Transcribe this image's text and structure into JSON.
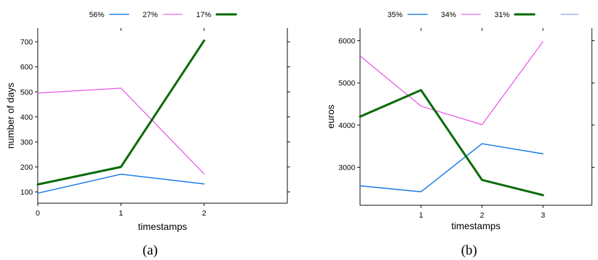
{
  "chart_data": [
    {
      "type": "line",
      "caption": "(a)",
      "xlabel": "timestamps",
      "ylabel": "number of days",
      "xlim": [
        0,
        3
      ],
      "ylim": [
        55,
        755
      ],
      "xticks": [
        0,
        1,
        2
      ],
      "yticks": [
        100,
        200,
        300,
        400,
        500,
        600,
        700
      ],
      "legend_position": "top",
      "grid": false,
      "series": [
        {
          "name": "56%",
          "color": "#1e7fe6",
          "width": 1.6,
          "x": [
            0,
            1,
            2
          ],
          "values": [
            95,
            171,
            132
          ]
        },
        {
          "name": "27%",
          "color": "#e638e6",
          "width": 1.1,
          "x": [
            0,
            1,
            2
          ],
          "values": [
            495,
            515,
            172
          ]
        },
        {
          "name": "17%",
          "color": "#0b6b0b",
          "width": 3.2,
          "x": [
            0,
            1,
            2
          ],
          "values": [
            130,
            200,
            705
          ]
        }
      ]
    },
    {
      "type": "line",
      "caption": "(b)",
      "xlabel": "timestamps",
      "ylabel": "euros",
      "xlim": [
        0,
        3.8
      ],
      "ylim": [
        2100,
        6300
      ],
      "xticks": [
        1,
        2,
        3
      ],
      "yticks": [
        3000,
        4000,
        5000,
        6000
      ],
      "legend_position": "top",
      "grid": false,
      "series": [
        {
          "name": "35%",
          "color": "#1e7fe6",
          "width": 1.6,
          "x": [
            0,
            1,
            2,
            3
          ],
          "values": [
            2560,
            2420,
            3560,
            3320
          ]
        },
        {
          "name": "34%",
          "color": "#e638e6",
          "width": 1.1,
          "x": [
            0,
            1,
            2,
            3
          ],
          "values": [
            5640,
            4450,
            4010,
            5980
          ]
        },
        {
          "name": "31%",
          "color": "#0b6b0b",
          "width": 3.2,
          "x": [
            0,
            1,
            2,
            3
          ],
          "values": [
            4200,
            4830,
            2700,
            2340
          ]
        },
        {
          "name": "",
          "color": "#5a8ff0",
          "width": 1.0,
          "x": [],
          "values": []
        }
      ]
    }
  ]
}
